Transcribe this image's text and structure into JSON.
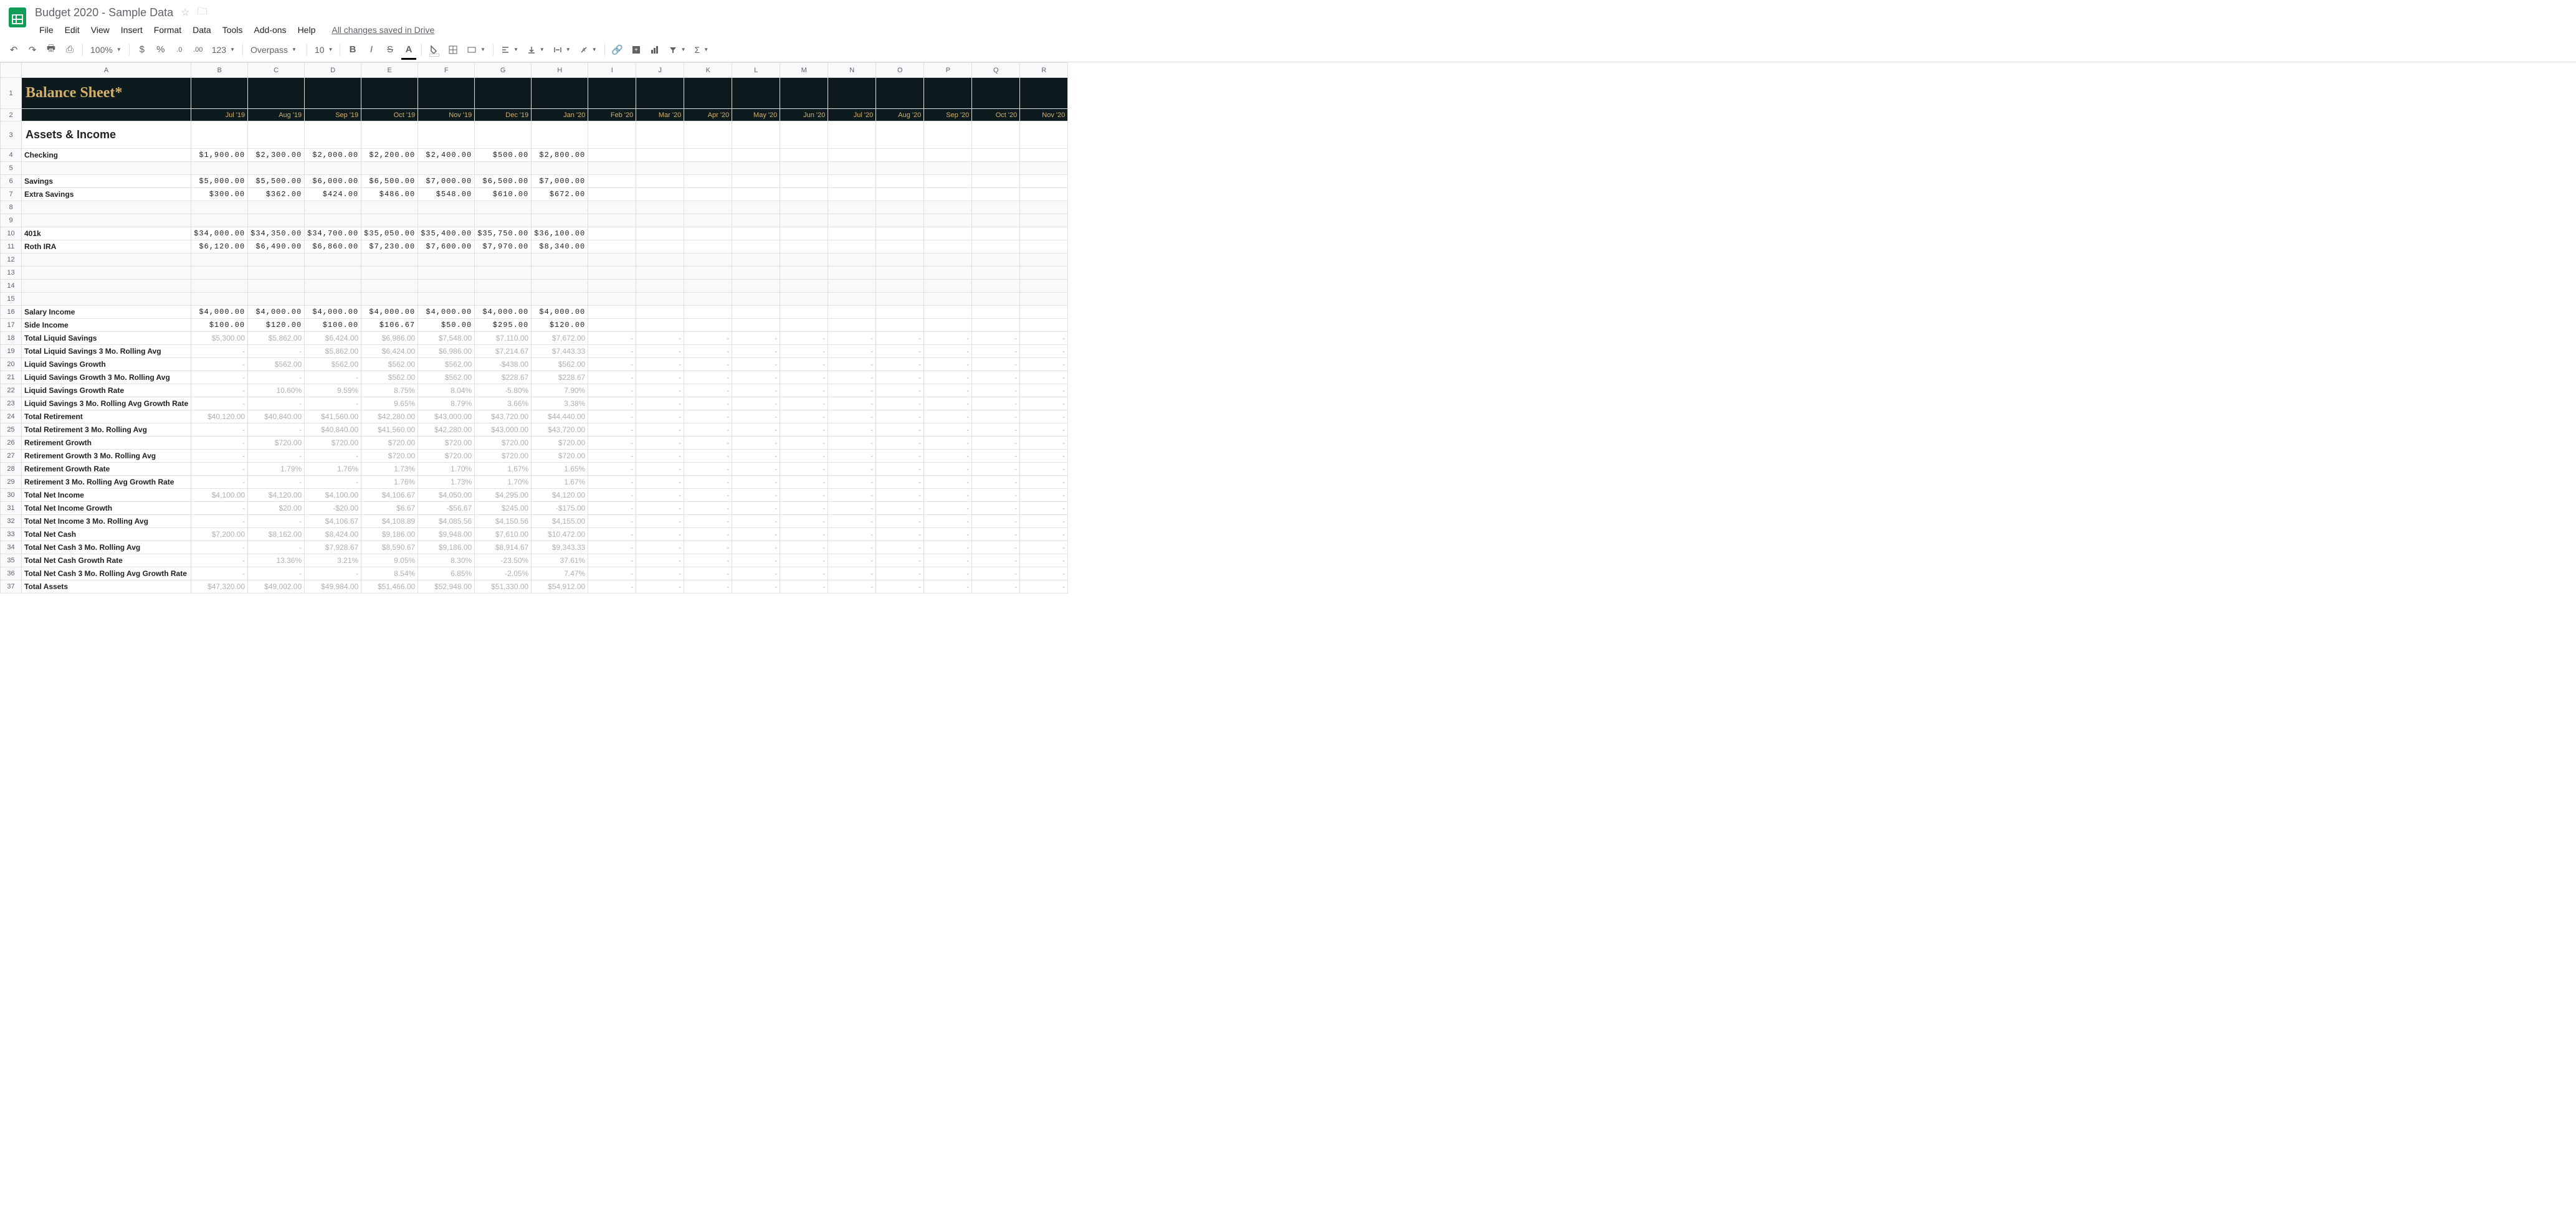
{
  "doc": {
    "title": "Budget 2020 - Sample Data"
  },
  "menu": {
    "file": "File",
    "edit": "Edit",
    "view": "View",
    "insert": "Insert",
    "format": "Format",
    "data": "Data",
    "tools": "Tools",
    "addons": "Add-ons",
    "help": "Help",
    "status": "All changes saved in Drive"
  },
  "toolbar": {
    "zoom": "100%",
    "font": "Overpass",
    "size": "10",
    "currency": "$",
    "percent": "%",
    "dec_dec": ".0",
    "dec_inc": ".00",
    "numfmt": "123"
  },
  "columns": [
    "A",
    "B",
    "C",
    "D",
    "E",
    "F",
    "G",
    "H",
    "I",
    "J",
    "K",
    "L",
    "M",
    "N",
    "O",
    "P",
    "Q",
    "R"
  ],
  "row_numbers": [
    1,
    2,
    3,
    4,
    5,
    6,
    7,
    8,
    9,
    10,
    11,
    12,
    13,
    14,
    15,
    16,
    17,
    18,
    19,
    20,
    21,
    22,
    23,
    24,
    25,
    26,
    27,
    28,
    29,
    30,
    31,
    32,
    33,
    34,
    35,
    36,
    37
  ],
  "sheet": {
    "title": "Balance Sheet*",
    "section": "Assets & Income",
    "months": [
      "Jul '19",
      "Aug '19",
      "Sep '19",
      "Oct '19",
      "Nov '19",
      "Dec '19",
      "Jan '20",
      "Feb '20",
      "Mar '20",
      "Apr '20",
      "May '20",
      "Jun '20",
      "Jul '20",
      "Aug '20",
      "Sep '20",
      "Oct '20",
      "Nov '20"
    ],
    "rows": [
      {
        "n": 4,
        "type": "money",
        "label": "Checking",
        "vals": [
          "$1,900.00",
          "$2,300.00",
          "$2,000.00",
          "$2,200.00",
          "$2,400.00",
          "$500.00",
          "$2,800.00"
        ]
      },
      {
        "n": 5,
        "type": "blank"
      },
      {
        "n": 6,
        "type": "money",
        "label": "Savings",
        "vals": [
          "$5,000.00",
          "$5,500.00",
          "$6,000.00",
          "$6,500.00",
          "$7,000.00",
          "$6,500.00",
          "$7,000.00"
        ]
      },
      {
        "n": 7,
        "type": "money",
        "label": "Extra Savings",
        "vals": [
          "$300.00",
          "$362.00",
          "$424.00",
          "$486.00",
          "$548.00",
          "$610.00",
          "$672.00"
        ]
      },
      {
        "n": 8,
        "type": "blank"
      },
      {
        "n": 9,
        "type": "blank"
      },
      {
        "n": 10,
        "type": "money",
        "label": "401k",
        "vals": [
          "$34,000.00",
          "$34,350.00",
          "$34,700.00",
          "$35,050.00",
          "$35,400.00",
          "$35,750.00",
          "$36,100.00"
        ]
      },
      {
        "n": 11,
        "type": "money",
        "label": "Roth IRA",
        "vals": [
          "$6,120.00",
          "$6,490.00",
          "$6,860.00",
          "$7,230.00",
          "$7,600.00",
          "$7,970.00",
          "$8,340.00"
        ]
      },
      {
        "n": 12,
        "type": "blank"
      },
      {
        "n": 13,
        "type": "blank"
      },
      {
        "n": 14,
        "type": "blank"
      },
      {
        "n": 15,
        "type": "blank"
      },
      {
        "n": 16,
        "type": "money",
        "label": "Salary Income",
        "vals": [
          "$4,000.00",
          "$4,000.00",
          "$4,000.00",
          "$4,000.00",
          "$4,000.00",
          "$4,000.00",
          "$4,000.00"
        ]
      },
      {
        "n": 17,
        "type": "money",
        "label": "Side Income",
        "vals": [
          "$100.00",
          "$120.00",
          "$100.00",
          "$106.67",
          "$50.00",
          "$295.00",
          "$120.00"
        ]
      },
      {
        "n": 18,
        "type": "calc",
        "label": "Total Liquid Savings",
        "vals": [
          "$5,300.00",
          "$5,862.00",
          "$6,424.00",
          "$6,986.00",
          "$7,548.00",
          "$7,110.00",
          "$7,672.00"
        ],
        "dash_rest": true
      },
      {
        "n": 19,
        "type": "calc",
        "label": "Total Liquid Savings 3 Mo. Rolling Avg",
        "vals": [
          "-",
          "-",
          "$5,862.00",
          "$6,424.00",
          "$6,986.00",
          "$7,214.67",
          "$7,443.33"
        ],
        "dash_rest": true
      },
      {
        "n": 20,
        "type": "calc",
        "label": "Liquid Savings Growth",
        "vals": [
          "-",
          "$562.00",
          "$562.00",
          "$562.00",
          "$562.00",
          "-$438.00",
          "$562.00"
        ],
        "dash_rest": true
      },
      {
        "n": 21,
        "type": "calc",
        "label": "Liquid Savings Growth 3 Mo. Rolling Avg",
        "vals": [
          "-",
          "-",
          "-",
          "$562.00",
          "$562.00",
          "$228.67",
          "$228.67"
        ],
        "dash_rest": true
      },
      {
        "n": 22,
        "type": "calc",
        "label": "Liquid Savings Growth Rate",
        "vals": [
          "-",
          "10.60%",
          "9.59%",
          "8.75%",
          "8.04%",
          "-5.80%",
          "7.90%"
        ],
        "dash_rest": true
      },
      {
        "n": 23,
        "type": "calc",
        "label": "Liquid Savings 3 Mo. Rolling Avg Growth Rate",
        "vals": [
          "-",
          "-",
          "-",
          "9.65%",
          "8.79%",
          "3.66%",
          "3.38%"
        ],
        "dash_rest": true
      },
      {
        "n": 24,
        "type": "calc",
        "label": "Total Retirement",
        "vals": [
          "$40,120.00",
          "$40,840.00",
          "$41,560.00",
          "$42,280.00",
          "$43,000.00",
          "$43,720.00",
          "$44,440.00"
        ],
        "dash_rest": true
      },
      {
        "n": 25,
        "type": "calc",
        "label": "Total Retirement 3 Mo. Rolling Avg",
        "vals": [
          "-",
          "-",
          "$40,840.00",
          "$41,560.00",
          "$42,280.00",
          "$43,000.00",
          "$43,720.00"
        ],
        "dash_rest": true
      },
      {
        "n": 26,
        "type": "calc",
        "label": "Retirement Growth",
        "vals": [
          "-",
          "$720.00",
          "$720.00",
          "$720.00",
          "$720.00",
          "$720.00",
          "$720.00"
        ],
        "dash_rest": true
      },
      {
        "n": 27,
        "type": "calc",
        "label": "Retirement Growth 3 Mo. Rolling Avg",
        "vals": [
          "-",
          "-",
          "-",
          "$720.00",
          "$720.00",
          "$720.00",
          "$720.00"
        ],
        "dash_rest": true
      },
      {
        "n": 28,
        "type": "calc",
        "label": "Retirement Growth Rate",
        "vals": [
          "-",
          "1.79%",
          "1.76%",
          "1.73%",
          "1.70%",
          "1.67%",
          "1.65%"
        ],
        "dash_rest": true
      },
      {
        "n": 29,
        "type": "calc",
        "label": "Retirement 3 Mo. Rolling Avg Growth Rate",
        "vals": [
          "-",
          "-",
          "-",
          "1.76%",
          "1.73%",
          "1.70%",
          "1.67%"
        ],
        "dash_rest": true
      },
      {
        "n": 30,
        "type": "calc",
        "label": "Total Net Income",
        "vals": [
          "$4,100.00",
          "$4,120.00",
          "$4,100.00",
          "$4,106.67",
          "$4,050.00",
          "$4,295.00",
          "$4,120.00"
        ],
        "dash_rest": true
      },
      {
        "n": 31,
        "type": "calc",
        "label": "Total Net Income Growth",
        "vals": [
          "-",
          "$20.00",
          "-$20.00",
          "$6.67",
          "-$56.67",
          "$245.00",
          "-$175.00"
        ],
        "dash_rest": true
      },
      {
        "n": 32,
        "type": "calc",
        "label": "Total Net Income 3 Mo. Rolling Avg",
        "vals": [
          "-",
          "-",
          "$4,106.67",
          "$4,108.89",
          "$4,085.56",
          "$4,150.56",
          "$4,155.00"
        ],
        "dash_rest": true
      },
      {
        "n": 33,
        "type": "calc",
        "label": "Total Net Cash",
        "vals": [
          "$7,200.00",
          "$8,162.00",
          "$8,424.00",
          "$9,186.00",
          "$9,948.00",
          "$7,610.00",
          "$10,472.00"
        ],
        "dash_rest": true
      },
      {
        "n": 34,
        "type": "calc",
        "label": "Total Net Cash 3 Mo. Rolling Avg",
        "vals": [
          "-",
          "-",
          "$7,928.67",
          "$8,590.67",
          "$9,186.00",
          "$8,914.67",
          "$9,343.33"
        ],
        "dash_rest": true
      },
      {
        "n": 35,
        "type": "calc",
        "label": "Total Net Cash Growth Rate",
        "vals": [
          "-",
          "13.36%",
          "3.21%",
          "9.05%",
          "8.30%",
          "-23.50%",
          "37.61%"
        ],
        "dash_rest": true
      },
      {
        "n": 36,
        "type": "calc",
        "label": "Total Net Cash 3 Mo. Rolling Avg Growth Rate",
        "vals": [
          "-",
          "-",
          "-",
          "8.54%",
          "6.85%",
          "-2.05%",
          "7.47%"
        ],
        "dash_rest": true
      },
      {
        "n": 37,
        "type": "calc",
        "label": "Total Assets",
        "vals": [
          "$47,320.00",
          "$49,002.00",
          "$49,984.00",
          "$51,466.00",
          "$52,948.00",
          "$51,330.00",
          "$54,912.00"
        ],
        "dash_rest": true
      }
    ]
  }
}
